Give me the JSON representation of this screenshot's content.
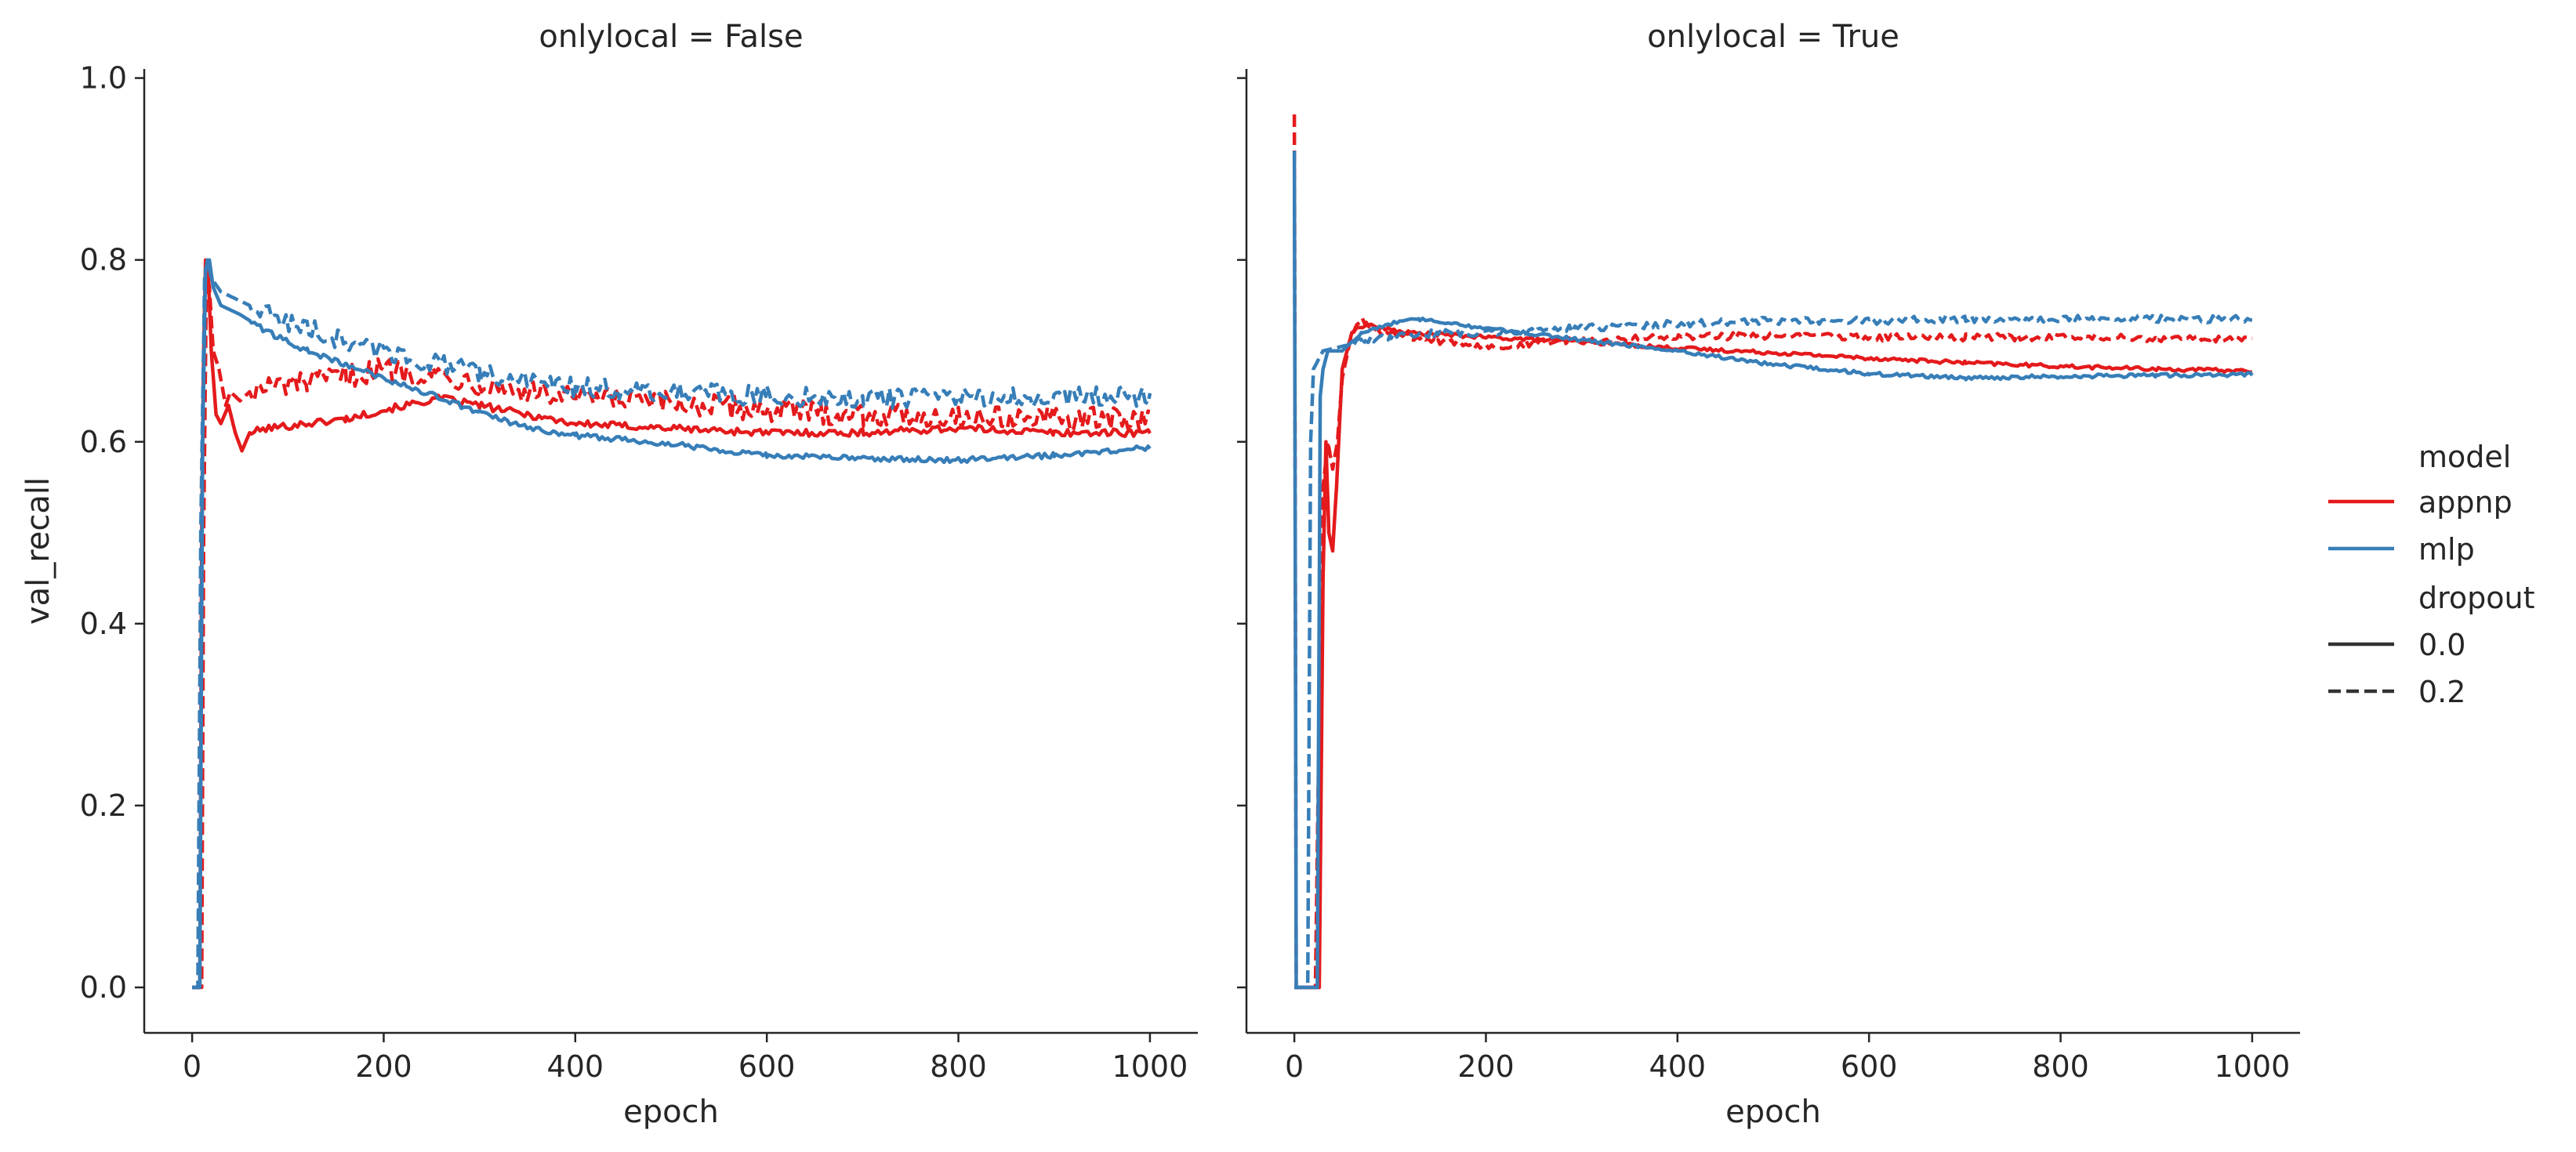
{
  "chart_data": {
    "type": "line",
    "ylabel": "val_recall",
    "ylim": [
      -0.05,
      1.01
    ],
    "xlim": [
      -50,
      1050
    ],
    "x_ticks": [
      0,
      200,
      400,
      600,
      800,
      1000
    ],
    "y_ticks": [
      "0.0",
      "0.2",
      "0.4",
      "0.6",
      "0.8",
      "1.0"
    ],
    "legend": {
      "placement": "right",
      "hue_title": "model",
      "hue_entries": [
        {
          "label": "appnp",
          "color": "#e41a1c"
        },
        {
          "label": "mlp",
          "color": "#377eb8"
        }
      ],
      "style_title": "dropout",
      "style_entries": [
        {
          "label": "0.0",
          "dash": "solid"
        },
        {
          "label": "0.2",
          "dash": "dashed"
        }
      ]
    },
    "panels": [
      {
        "title": "onlylocal = False",
        "xlabel": "epoch",
        "series": [
          {
            "model": "appnp",
            "dropout": "0.0",
            "color": "#e41a1c",
            "dash": "solid",
            "points": [
              [
                0,
                0.0
              ],
              [
                8,
                0.0
              ],
              [
                10,
                0.5
              ],
              [
                12,
                0.7
              ],
              [
                14,
                0.8
              ],
              [
                17,
                0.78
              ],
              [
                20,
                0.7
              ],
              [
                25,
                0.63
              ],
              [
                30,
                0.62
              ],
              [
                38,
                0.64
              ],
              [
                45,
                0.61
              ],
              [
                52,
                0.59
              ],
              [
                60,
                0.61
              ],
              [
                80,
                0.615
              ],
              [
                120,
                0.62
              ],
              [
                160,
                0.625
              ],
              [
                200,
                0.635
              ],
              [
                260,
                0.648
              ],
              [
                300,
                0.64
              ],
              [
                350,
                0.63
              ],
              [
                400,
                0.62
              ],
              [
                500,
                0.615
              ],
              [
                600,
                0.61
              ],
              [
                700,
                0.61
              ],
              [
                800,
                0.615
              ],
              [
                900,
                0.61
              ],
              [
                1000,
                0.61
              ]
            ],
            "noise": 0.004
          },
          {
            "model": "appnp",
            "dropout": "0.2",
            "color": "#e41a1c",
            "dash": "dashed",
            "points": [
              [
                0,
                0.0
              ],
              [
                10,
                0.0
              ],
              [
                12,
                0.5
              ],
              [
                15,
                0.79
              ],
              [
                18,
                0.77
              ],
              [
                22,
                0.7
              ],
              [
                28,
                0.68
              ],
              [
                35,
                0.64
              ],
              [
                40,
                0.655
              ],
              [
                50,
                0.645
              ],
              [
                60,
                0.655
              ],
              [
                80,
                0.66
              ],
              [
                120,
                0.665
              ],
              [
                160,
                0.672
              ],
              [
                200,
                0.68
              ],
              [
                250,
                0.675
              ],
              [
                300,
                0.665
              ],
              [
                350,
                0.655
              ],
              [
                400,
                0.648
              ],
              [
                500,
                0.642
              ],
              [
                600,
                0.635
              ],
              [
                700,
                0.63
              ],
              [
                800,
                0.628
              ],
              [
                900,
                0.625
              ],
              [
                1000,
                0.625
              ]
            ],
            "noise": 0.013
          },
          {
            "model": "mlp",
            "dropout": "0.0",
            "color": "#377eb8",
            "dash": "solid",
            "points": [
              [
                0,
                0.0
              ],
              [
                8,
                0.0
              ],
              [
                11,
                0.6
              ],
              [
                14,
                0.79
              ],
              [
                18,
                0.8
              ],
              [
                22,
                0.77
              ],
              [
                30,
                0.75
              ],
              [
                50,
                0.74
              ],
              [
                80,
                0.72
              ],
              [
                120,
                0.7
              ],
              [
                160,
                0.685
              ],
              [
                200,
                0.67
              ],
              [
                260,
                0.648
              ],
              [
                300,
                0.632
              ],
              [
                350,
                0.615
              ],
              [
                400,
                0.607
              ],
              [
                500,
                0.598
              ],
              [
                600,
                0.585
              ],
              [
                700,
                0.582
              ],
              [
                800,
                0.58
              ],
              [
                900,
                0.585
              ],
              [
                1000,
                0.594
              ]
            ],
            "noise": 0.003
          },
          {
            "model": "mlp",
            "dropout": "0.2",
            "color": "#377eb8",
            "dash": "dashed",
            "points": [
              [
                0,
                0.0
              ],
              [
                6,
                0.0
              ],
              [
                9,
                0.5
              ],
              [
                13,
                0.78
              ],
              [
                16,
                0.8
              ],
              [
                20,
                0.78
              ],
              [
                30,
                0.765
              ],
              [
                50,
                0.755
              ],
              [
                80,
                0.74
              ],
              [
                120,
                0.725
              ],
              [
                160,
                0.71
              ],
              [
                200,
                0.7
              ],
              [
                260,
                0.685
              ],
              [
                300,
                0.675
              ],
              [
                350,
                0.667
              ],
              [
                400,
                0.66
              ],
              [
                500,
                0.655
              ],
              [
                600,
                0.65
              ],
              [
                700,
                0.648
              ],
              [
                800,
                0.648
              ],
              [
                900,
                0.65
              ],
              [
                1000,
                0.65
              ]
            ],
            "noise": 0.011
          }
        ]
      },
      {
        "title": "onlylocal = True",
        "xlabel": "epoch",
        "series": [
          {
            "model": "appnp",
            "dropout": "0.0",
            "color": "#e41a1c",
            "dash": "solid",
            "points": [
              [
                0,
                0.0
              ],
              [
                14,
                0.0
              ],
              [
                26,
                0.0
              ],
              [
                30,
                0.45
              ],
              [
                33,
                0.6
              ],
              [
                36,
                0.5
              ],
              [
                40,
                0.48
              ],
              [
                44,
                0.55
              ],
              [
                50,
                0.68
              ],
              [
                60,
                0.72
              ],
              [
                75,
                0.73
              ],
              [
                90,
                0.725
              ],
              [
                120,
                0.72
              ],
              [
                200,
                0.715
              ],
              [
                300,
                0.71
              ],
              [
                400,
                0.703
              ],
              [
                500,
                0.698
              ],
              [
                600,
                0.692
              ],
              [
                700,
                0.687
              ],
              [
                800,
                0.683
              ],
              [
                900,
                0.68
              ],
              [
                1000,
                0.678
              ]
            ],
            "noise": 0.002
          },
          {
            "model": "appnp",
            "dropout": "0.2",
            "color": "#e41a1c",
            "dash": "dashed",
            "points": [
              [
                0,
                0.96
              ],
              [
                2,
                0.0
              ],
              [
                5,
                0.0
              ],
              [
                18,
                0.0
              ],
              [
                22,
                0.0
              ],
              [
                26,
                0.3
              ],
              [
                30,
                0.55
              ],
              [
                35,
                0.6
              ],
              [
                40,
                0.57
              ],
              [
                45,
                0.6
              ],
              [
                50,
                0.67
              ],
              [
                60,
                0.72
              ],
              [
                70,
                0.735
              ],
              [
                90,
                0.72
              ],
              [
                150,
                0.71
              ],
              [
                200,
                0.705
              ],
              [
                300,
                0.712
              ],
              [
                400,
                0.715
              ],
              [
                500,
                0.717
              ],
              [
                600,
                0.715
              ],
              [
                700,
                0.715
              ],
              [
                800,
                0.715
              ],
              [
                900,
                0.714
              ],
              [
                1000,
                0.713
              ]
            ],
            "noise": 0.004
          },
          {
            "model": "mlp",
            "dropout": "0.0",
            "color": "#377eb8",
            "dash": "solid",
            "points": [
              [
                0,
                0.92
              ],
              [
                2,
                0.0
              ],
              [
                4,
                0.0
              ],
              [
                20,
                0.0
              ],
              [
                24,
                0.0
              ],
              [
                27,
                0.65
              ],
              [
                30,
                0.68
              ],
              [
                35,
                0.7
              ],
              [
                50,
                0.7
              ],
              [
                70,
                0.72
              ],
              [
                100,
                0.73
              ],
              [
                130,
                0.735
              ],
              [
                160,
                0.73
              ],
              [
                200,
                0.725
              ],
              [
                300,
                0.712
              ],
              [
                400,
                0.7
              ],
              [
                500,
                0.685
              ],
              [
                600,
                0.675
              ],
              [
                700,
                0.67
              ],
              [
                800,
                0.672
              ],
              [
                900,
                0.673
              ],
              [
                1000,
                0.674
              ]
            ],
            "noise": 0.002
          },
          {
            "model": "mlp",
            "dropout": "0.2",
            "color": "#377eb8",
            "dash": "dashed",
            "points": [
              [
                0,
                0.0
              ],
              [
                8,
                0.0
              ],
              [
                14,
                0.0
              ],
              [
                17,
                0.6
              ],
              [
                20,
                0.68
              ],
              [
                30,
                0.7
              ],
              [
                50,
                0.705
              ],
              [
                70,
                0.71
              ],
              [
                100,
                0.715
              ],
              [
                150,
                0.72
              ],
              [
                200,
                0.72
              ],
              [
                300,
                0.725
              ],
              [
                400,
                0.73
              ],
              [
                500,
                0.733
              ],
              [
                600,
                0.733
              ],
              [
                700,
                0.735
              ],
              [
                800,
                0.735
              ],
              [
                900,
                0.735
              ],
              [
                1000,
                0.735
              ]
            ],
            "noise": 0.004
          }
        ]
      }
    ]
  }
}
